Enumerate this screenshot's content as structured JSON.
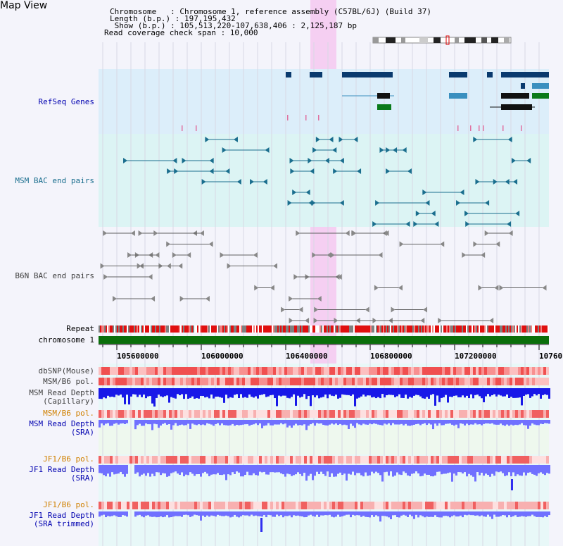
{
  "page": {
    "title": "Map View"
  },
  "info": {
    "chromosome": "Chromosome   : Chromosome 1, reference assembly (C57BL/6J) (Build 37)",
    "length": "Length (b.p.) : 197,195,432",
    "show": " Show (b.p.) : 105,513,220-107,638,406 : 2,125,187 bp",
    "coverage": "Read coverage check span : 10,000"
  },
  "tracks": {
    "refseq": "RefSeq Genes",
    "msm_bac": "MSM BAC end pairs",
    "b6n_bac": "B6N BAC end pairs",
    "repeat": "Repeat",
    "chromosome": "chromosome 1",
    "dbsnp": "dbSNP(Mouse)",
    "msm_b6_pol_1": "MSM/B6 pol.",
    "msm_read_depth_cap": "MSM Read Depth\n(Capillary)",
    "msm_b6_pol_2": "MSM/B6 pol.",
    "msm_read_depth_sra": "MSM Read Depth\n(SRA)",
    "jf1_b6_pol_1": "JF1/B6 pol.",
    "jf1_read_depth_sra": "JF1 Read Depth\n(SRA)",
    "jf1_b6_pol_2": "JF1/B6 pol.",
    "jf1_read_depth_trim": "JF1 Read Depth\n(SRA trimmed)"
  },
  "axis": {
    "ticks": [
      "105600000",
      "106000000",
      "106400000",
      "106800000",
      "107200000",
      "10760"
    ]
  },
  "colors": {
    "refseq_bg": "#dceefa",
    "msm_bg": "#dcf4f4",
    "highlight": "#f5c8f0",
    "gene_dark": "#0a3a6e",
    "gene_mid": "#3a8fbf",
    "gene_green": "#0a7a1a",
    "chrom_green": "#0a6e0a",
    "msm_pair": "#1a6e8e",
    "b6n_pair": "#606060",
    "depth_blue": "#1010e0",
    "depth_light": "#7070ff",
    "label_blue": "#0000b0",
    "label_orange": "#d08000",
    "label_grey": "#404040"
  }
}
